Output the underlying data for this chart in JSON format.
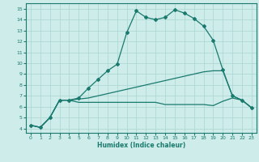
{
  "bg_color": "#ceecea",
  "grid_color": "#aed8d4",
  "line_color": "#1a7a6e",
  "xlabel": "Humidex (Indice chaleur)",
  "xlim": [
    -0.5,
    23.5
  ],
  "ylim": [
    3.6,
    15.5
  ],
  "yticks": [
    4,
    5,
    6,
    7,
    8,
    9,
    10,
    11,
    12,
    13,
    14,
    15
  ],
  "xticks": [
    0,
    1,
    2,
    3,
    4,
    5,
    6,
    7,
    8,
    9,
    10,
    11,
    12,
    13,
    14,
    15,
    16,
    17,
    18,
    19,
    20,
    21,
    22,
    23
  ],
  "line1_x": [
    0,
    1,
    2,
    3,
    4,
    5,
    6,
    7,
    8,
    9,
    10,
    11,
    12,
    13,
    14,
    15,
    16,
    17,
    18,
    19,
    20,
    21,
    22,
    23
  ],
  "line1_y": [
    4.3,
    4.1,
    5.0,
    6.6,
    6.6,
    6.8,
    7.7,
    8.5,
    9.3,
    9.9,
    12.8,
    14.8,
    14.2,
    14.0,
    14.2,
    14.9,
    14.6,
    14.1,
    13.4,
    12.1,
    9.4,
    7.0,
    6.6,
    5.9
  ],
  "line2_x": [
    0,
    1,
    2,
    3,
    4,
    5,
    6,
    7,
    8,
    9,
    10,
    11,
    12,
    13,
    14,
    15,
    16,
    17,
    18,
    19,
    20,
    21,
    22,
    23
  ],
  "line2_y": [
    4.3,
    4.1,
    5.0,
    6.6,
    6.6,
    6.7,
    6.8,
    7.0,
    7.2,
    7.4,
    7.6,
    7.8,
    8.0,
    8.2,
    8.4,
    8.6,
    8.8,
    9.0,
    9.2,
    9.3,
    9.3,
    7.0,
    6.6,
    5.9
  ],
  "line3_x": [
    0,
    1,
    2,
    3,
    4,
    5,
    6,
    7,
    8,
    9,
    10,
    11,
    12,
    13,
    14,
    15,
    16,
    17,
    18,
    19,
    20,
    21,
    22,
    23
  ],
  "line3_y": [
    4.3,
    4.1,
    5.0,
    6.6,
    6.6,
    6.4,
    6.4,
    6.4,
    6.4,
    6.4,
    6.4,
    6.4,
    6.4,
    6.4,
    6.2,
    6.2,
    6.2,
    6.2,
    6.2,
    6.1,
    6.5,
    6.8,
    6.6,
    5.9
  ]
}
